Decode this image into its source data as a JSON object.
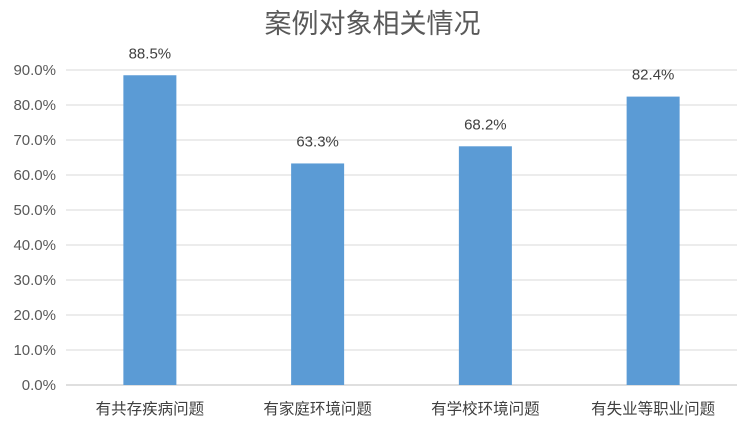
{
  "chart_data": {
    "type": "bar",
    "title": "案例对象相关情况",
    "categories": [
      "有共存疾病问题",
      "有家庭环境问题",
      "有学校环境问题",
      "有失业等职业问题"
    ],
    "values": [
      88.5,
      63.3,
      68.2,
      82.4
    ],
    "data_labels": [
      "88.5%",
      "63.3%",
      "68.2%",
      "82.4%"
    ],
    "y_ticks": [
      "0.0%",
      "10.0%",
      "20.0%",
      "30.0%",
      "40.0%",
      "50.0%",
      "60.0%",
      "70.0%",
      "80.0%",
      "90.0%"
    ],
    "ylim": [
      0,
      90
    ],
    "xlabel": "",
    "ylabel": "",
    "grid": true,
    "legend": "none",
    "bar_color": "#5b9bd5",
    "grid_color": "#d9d9d9"
  }
}
